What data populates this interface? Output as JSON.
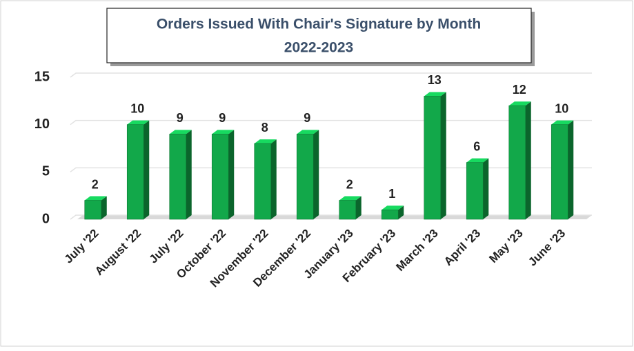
{
  "chart_data": {
    "type": "bar",
    "title": "Orders Issued With Chair's Signature by Month",
    "subtitle": "2022-2023",
    "categories": [
      "July '22",
      "August '22",
      "July '22",
      "October '22",
      "November '22",
      "December '22",
      "January '23",
      "February '23",
      "March '23",
      "April '23",
      "May '23",
      "June '23"
    ],
    "values": [
      2,
      10,
      9,
      9,
      8,
      9,
      2,
      1,
      13,
      6,
      12,
      10
    ],
    "color": "#12a84a",
    "ylim": [
      0,
      15
    ],
    "yticks": [
      0,
      5,
      10,
      15
    ],
    "grid": true
  }
}
